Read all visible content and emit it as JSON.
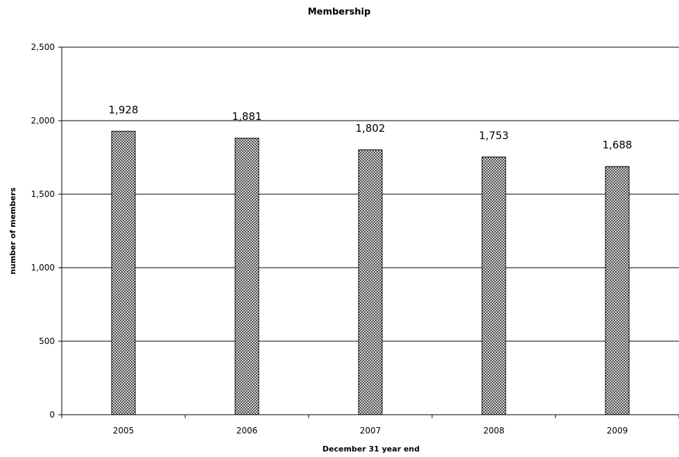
{
  "chart_data": {
    "type": "bar",
    "title": "Membership",
    "xlabel": "December 31 year end",
    "ylabel": "number of members",
    "categories": [
      "2005",
      "2006",
      "2007",
      "2008",
      "2009"
    ],
    "values": [
      1928,
      1881,
      1802,
      1753,
      1688
    ],
    "value_labels": [
      "1,928",
      "1,881",
      "1,802",
      "1,753",
      "1,688"
    ],
    "ylim": [
      0,
      2500
    ],
    "yticks": [
      0,
      500,
      1000,
      1500,
      2000,
      2500
    ],
    "ytick_labels": [
      "0",
      "500",
      "1,000",
      "1,500",
      "2,000",
      "2,500"
    ],
    "grid": true,
    "legend": "none",
    "bar_fill": "crosshatch",
    "colors": {
      "bar_fill": "#ffffff",
      "bar_hatch": "#333333",
      "bar_edge": "#000000",
      "grid": "#000000"
    }
  }
}
